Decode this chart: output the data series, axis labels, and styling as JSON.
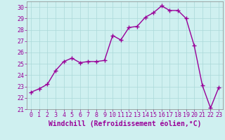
{
  "x": [
    0,
    1,
    2,
    3,
    4,
    5,
    6,
    7,
    8,
    9,
    10,
    11,
    12,
    13,
    14,
    15,
    16,
    17,
    18,
    19,
    20,
    21,
    22,
    23
  ],
  "y": [
    22.5,
    22.8,
    23.2,
    24.4,
    25.2,
    25.5,
    25.1,
    25.2,
    25.2,
    25.3,
    27.5,
    27.1,
    28.2,
    28.3,
    29.1,
    29.5,
    30.1,
    29.7,
    29.7,
    29.0,
    26.6,
    23.1,
    21.1,
    22.9
  ],
  "line_color": "#990099",
  "marker": "+",
  "markersize": 4,
  "linewidth": 1.0,
  "markeredgewidth": 1.0,
  "xlabel": "Windchill (Refroidissement éolien,°C)",
  "xlabel_fontsize": 7,
  "xlabel_fontweight": "bold",
  "ylabel_ticks": [
    21,
    22,
    23,
    24,
    25,
    26,
    27,
    28,
    29,
    30
  ],
  "xlim": [
    -0.5,
    23.5
  ],
  "ylim": [
    21,
    30.5
  ],
  "background_color": "#cff0f0",
  "grid_color": "#aad8d8",
  "tick_color": "#990099",
  "tick_fontsize": 6,
  "spine_color": "#888888"
}
